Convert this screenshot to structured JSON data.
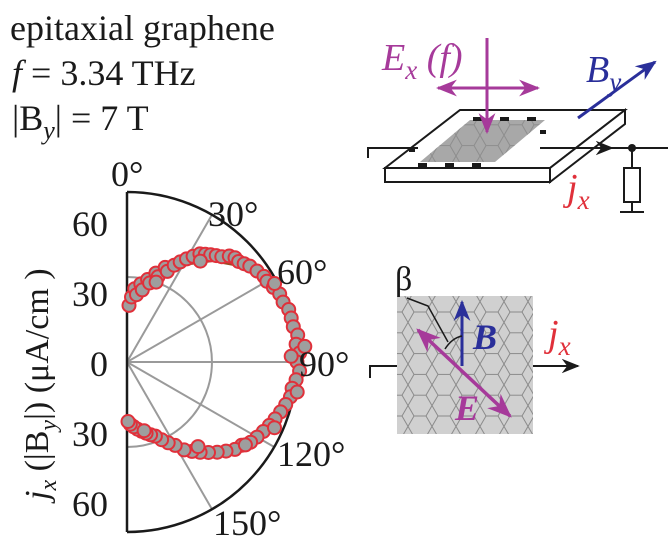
{
  "caption": {
    "line1": "epitaxial graphene",
    "f_symbol": "f",
    "f_value": " = 3.34 THz",
    "b_abs_open": "|B",
    "b_abs_sub": "y",
    "b_abs_close": "| = 7 T"
  },
  "setup": {
    "ex_label": "E",
    "ex_sub": "x",
    "ex_arg": " (f)",
    "by_label": "B",
    "by_sub": "y",
    "jx_label": "j",
    "jx_sub": "x"
  },
  "inset": {
    "beta": "β",
    "b_vec": "B",
    "e_vec": "E",
    "jx_label": "j",
    "jx_sub": "x"
  },
  "colors": {
    "magenta": "#a63a9a",
    "blue": "#2a2f9a",
    "red": "#e0303a",
    "fit": "#9a4a22",
    "marker_fill": "#9e9e9e"
  },
  "chart_data": {
    "type": "scatter",
    "coordinate_system": "polar (half-plane)",
    "angle_axis": {
      "unit": "degree",
      "range": [
        0,
        180
      ],
      "tick_labels": [
        "0°",
        "30°",
        "60°",
        "90°",
        "120°",
        "150°"
      ]
    },
    "radial_axis": {
      "label_main": "j",
      "label_sub": "x",
      "label_paren": " (|B",
      "label_paren_sub": "y",
      "label_units": "|) (μA/cm )",
      "range": [
        0,
        60
      ],
      "tick_labels_upper": [
        "60",
        "30",
        "0"
      ],
      "tick_labels_lower": [
        "30",
        "60"
      ]
    },
    "series": [
      {
        "kind": "measured",
        "points": [
          [
            2,
            20
          ],
          [
            4,
            23
          ],
          [
            6,
            26
          ],
          [
            8,
            24
          ],
          [
            10,
            28
          ],
          [
            12,
            26
          ],
          [
            14,
            30
          ],
          [
            16,
            29
          ],
          [
            18,
            33
          ],
          [
            20,
            32
          ],
          [
            22,
            36
          ],
          [
            24,
            35
          ],
          [
            26,
            38
          ],
          [
            28,
            40
          ],
          [
            30,
            42
          ],
          [
            32,
            44
          ],
          [
            34,
            46
          ],
          [
            36,
            47
          ],
          [
            38,
            48
          ],
          [
            40,
            49
          ],
          [
            42,
            50
          ],
          [
            44,
            52
          ],
          [
            46,
            53
          ],
          [
            48,
            53
          ],
          [
            50,
            54
          ],
          [
            52,
            55
          ],
          [
            55,
            56
          ],
          [
            58,
            57
          ],
          [
            60,
            57
          ],
          [
            63,
            58
          ],
          [
            66,
            59
          ],
          [
            69,
            59
          ],
          [
            72,
            60
          ],
          [
            75,
            60
          ],
          [
            78,
            60
          ],
          [
            81,
            61
          ],
          [
            84,
            60
          ],
          [
            87,
            61
          ],
          [
            90,
            60
          ],
          [
            93,
            61
          ],
          [
            96,
            60
          ],
          [
            99,
            59
          ],
          [
            102,
            59
          ],
          [
            105,
            58
          ],
          [
            108,
            57
          ],
          [
            111,
            56
          ],
          [
            114,
            55
          ],
          [
            117,
            54
          ],
          [
            120,
            53
          ],
          [
            123,
            52
          ],
          [
            126,
            50
          ],
          [
            129,
            49
          ],
          [
            132,
            47
          ],
          [
            135,
            45
          ],
          [
            138,
            43
          ],
          [
            141,
            41
          ],
          [
            144,
            39
          ],
          [
            147,
            37
          ],
          [
            150,
            34
          ],
          [
            153,
            32
          ],
          [
            156,
            30
          ],
          [
            159,
            28
          ],
          [
            162,
            27
          ],
          [
            165,
            26
          ],
          [
            168,
            25
          ],
          [
            171,
            24
          ],
          [
            174,
            23
          ],
          [
            177,
            22
          ],
          [
            179,
            21
          ],
          [
            36,
            44
          ],
          [
            62,
            59
          ],
          [
            88,
            58
          ],
          [
            114,
            57
          ],
          [
            140,
            39
          ],
          [
            166,
            25
          ],
          [
            20,
            30
          ],
          [
            100,
            61
          ],
          [
            125,
            51
          ],
          [
            85,
            63
          ]
        ]
      },
      {
        "kind": "fit",
        "points": [
          [
            0,
            21
          ],
          [
            10,
            26
          ],
          [
            20,
            33
          ],
          [
            30,
            40
          ],
          [
            40,
            47
          ],
          [
            50,
            53
          ],
          [
            60,
            57
          ],
          [
            70,
            59
          ],
          [
            80,
            60
          ],
          [
            90,
            60
          ],
          [
            100,
            59
          ],
          [
            110,
            57
          ],
          [
            120,
            53
          ],
          [
            130,
            48
          ],
          [
            140,
            42
          ],
          [
            150,
            35
          ],
          [
            160,
            29
          ],
          [
            170,
            24
          ],
          [
            180,
            21
          ]
        ]
      }
    ]
  }
}
